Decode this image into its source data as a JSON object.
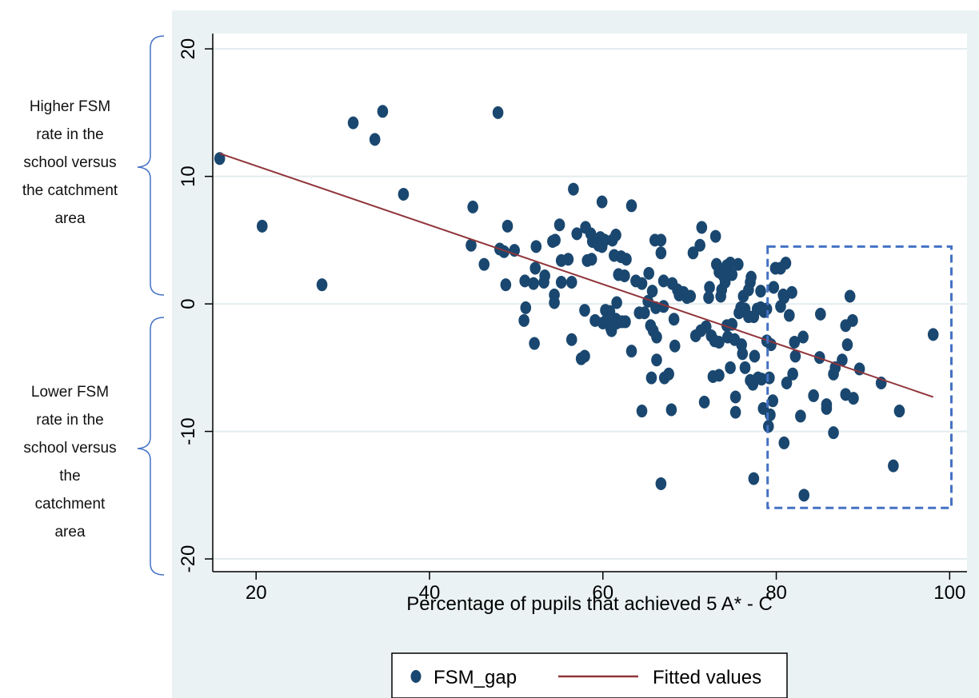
{
  "annotations": {
    "upper": "Higher FSM\nrate in the\nschool versus\nthe catchment\narea",
    "lower": "Lower FSM\nrate in the\nschool versus\nthe\ncatchment\narea"
  },
  "legend": {
    "scatter_label": "FSM_gap",
    "line_label": "Fitted values"
  },
  "colors": {
    "plot_background": "#eaf2f3",
    "marker": "#1a476f",
    "fit_line": "#90353b",
    "highlight_box": "#4472c4",
    "gridline": "#ffffff"
  },
  "chart_data": {
    "type": "scatter",
    "xlabel": "Percentage of pupils that achieved 5 A* - C",
    "ylabel": "",
    "xlim": [
      15,
      102
    ],
    "ylim": [
      -21,
      21.2
    ],
    "xticks": [
      20,
      40,
      60,
      80,
      100
    ],
    "yticks": [
      -20,
      -10,
      0,
      10,
      20
    ],
    "grid": true,
    "legend_position": "bottom",
    "series": [
      {
        "name": "FSM_gap",
        "type": "scatter",
        "points": [
          [
            15.8,
            11.4
          ],
          [
            20.7,
            6.1
          ],
          [
            27.6,
            1.5
          ],
          [
            31.2,
            14.2
          ],
          [
            33.7,
            12.9
          ],
          [
            34.6,
            15.1
          ],
          [
            37.0,
            8.6
          ],
          [
            47.9,
            15.0
          ],
          [
            45.0,
            7.6
          ],
          [
            44.8,
            4.6
          ],
          [
            46.3,
            3.1
          ],
          [
            48.1,
            4.3
          ],
          [
            48.6,
            4.1
          ],
          [
            49.0,
            6.1
          ],
          [
            49.8,
            4.2
          ],
          [
            48.8,
            1.5
          ],
          [
            51.0,
            1.8
          ],
          [
            51.1,
            -0.3
          ],
          [
            50.9,
            -1.3
          ],
          [
            52.0,
            1.6
          ],
          [
            52.2,
            2.8
          ],
          [
            52.3,
            4.5
          ],
          [
            52.1,
            -3.1
          ],
          [
            53.2,
            1.7
          ],
          [
            53.3,
            2.2
          ],
          [
            54.2,
            4.9
          ],
          [
            54.5,
            5.0
          ],
          [
            54.4,
            0.1
          ],
          [
            54.4,
            0.7
          ],
          [
            55.0,
            6.2
          ],
          [
            55.2,
            3.4
          ],
          [
            55.2,
            1.7
          ],
          [
            56.0,
            3.5
          ],
          [
            56.4,
            1.7
          ],
          [
            56.4,
            -2.8
          ],
          [
            56.6,
            9.0
          ],
          [
            57.0,
            5.5
          ],
          [
            57.5,
            -4.3
          ],
          [
            57.9,
            -4.1
          ],
          [
            57.9,
            -0.5
          ],
          [
            58.0,
            6.0
          ],
          [
            58.2,
            3.4
          ],
          [
            58.6,
            5.5
          ],
          [
            58.7,
            3.5
          ],
          [
            58.8,
            4.9
          ],
          [
            59.1,
            -1.3
          ],
          [
            59.3,
            5.0
          ],
          [
            59.5,
            4.6
          ],
          [
            59.7,
            5.2
          ],
          [
            59.9,
            8.0
          ],
          [
            59.9,
            4.5
          ],
          [
            60.0,
            -1.5
          ],
          [
            60.2,
            5.0
          ],
          [
            60.3,
            -0.5
          ],
          [
            60.5,
            -1.2
          ],
          [
            60.8,
            -0.6
          ],
          [
            60.9,
            -1.9
          ],
          [
            61.0,
            -2.1
          ],
          [
            61.1,
            5.0
          ],
          [
            61.3,
            3.8
          ],
          [
            61.5,
            5.4
          ],
          [
            61.5,
            -1.2
          ],
          [
            61.6,
            -1.5
          ],
          [
            61.6,
            0.1
          ],
          [
            61.8,
            2.3
          ],
          [
            62.1,
            3.7
          ],
          [
            62.2,
            -1.4
          ],
          [
            62.5,
            2.2
          ],
          [
            62.6,
            -1.4
          ],
          [
            62.7,
            3.5
          ],
          [
            63.3,
            7.7
          ],
          [
            63.3,
            -3.7
          ],
          [
            63.8,
            1.8
          ],
          [
            64.2,
            -0.7
          ],
          [
            64.5,
            1.6
          ],
          [
            64.5,
            -8.4
          ],
          [
            64.8,
            -0.7
          ],
          [
            65.2,
            0.2
          ],
          [
            65.3,
            2.4
          ],
          [
            65.5,
            -1.7
          ],
          [
            65.6,
            -5.8
          ],
          [
            65.7,
            1.0
          ],
          [
            65.8,
            -2.1
          ],
          [
            66.0,
            5.0
          ],
          [
            66.1,
            -0.3
          ],
          [
            66.2,
            -2.6
          ],
          [
            66.2,
            -4.4
          ],
          [
            66.7,
            5.0
          ],
          [
            66.7,
            4.0
          ],
          [
            66.7,
            -14.1
          ],
          [
            67.0,
            1.8
          ],
          [
            67.0,
            -0.2
          ],
          [
            67.1,
            -5.8
          ],
          [
            67.6,
            -5.5
          ],
          [
            67.9,
            -8.3
          ],
          [
            68.0,
            1.6
          ],
          [
            68.2,
            -1.2
          ],
          [
            68.3,
            -3.3
          ],
          [
            68.6,
            1.1
          ],
          [
            68.8,
            0.7
          ],
          [
            69.3,
            0.9
          ],
          [
            69.7,
            0.5
          ],
          [
            70.1,
            0.6
          ],
          [
            70.4,
            4.0
          ],
          [
            70.7,
            -2.5
          ],
          [
            71.2,
            4.6
          ],
          [
            71.3,
            -2.1
          ],
          [
            71.4,
            6.0
          ],
          [
            71.7,
            -7.7
          ],
          [
            71.9,
            -1.8
          ],
          [
            72.2,
            0.5
          ],
          [
            72.3,
            1.3
          ],
          [
            72.5,
            -2.5
          ],
          [
            72.7,
            -5.7
          ],
          [
            72.9,
            -2.9
          ],
          [
            73.0,
            5.3
          ],
          [
            73.1,
            3.1
          ],
          [
            73.4,
            -3.0
          ],
          [
            73.4,
            2.5
          ],
          [
            73.4,
            -5.6
          ],
          [
            73.6,
            0.6
          ],
          [
            73.7,
            1.1
          ],
          [
            73.9,
            2.2
          ],
          [
            74.1,
            1.7
          ],
          [
            74.3,
            3.0
          ],
          [
            74.3,
            -1.7
          ],
          [
            74.4,
            -2.6
          ],
          [
            74.7,
            -5.0
          ],
          [
            74.7,
            3.2
          ],
          [
            74.9,
            -1.6
          ],
          [
            74.9,
            2.3
          ],
          [
            75.2,
            -2.8
          ],
          [
            75.3,
            -8.5
          ],
          [
            75.3,
            -7.3
          ],
          [
            75.6,
            3.1
          ],
          [
            75.7,
            -0.7
          ],
          [
            75.9,
            -0.3
          ],
          [
            76.0,
            -3.2
          ],
          [
            76.1,
            -3.9
          ],
          [
            76.2,
            0.6
          ],
          [
            76.4,
            -5.0
          ],
          [
            76.4,
            -0.4
          ],
          [
            76.8,
            -1.0
          ],
          [
            76.8,
            1.1
          ],
          [
            77.0,
            1.7
          ],
          [
            77.0,
            -6.0
          ],
          [
            77.1,
            2.1
          ],
          [
            77.3,
            -6.3
          ],
          [
            77.4,
            -13.7
          ],
          [
            77.4,
            -1.0
          ],
          [
            77.5,
            -4.1
          ],
          [
            77.8,
            -0.4
          ],
          [
            77.9,
            -5.8
          ],
          [
            78.2,
            1.0
          ],
          [
            78.2,
            -0.3
          ],
          [
            78.3,
            -5.9
          ],
          [
            78.5,
            -8.2
          ],
          [
            78.6,
            -0.6
          ],
          [
            78.9,
            -2.9
          ],
          [
            78.9,
            -0.4
          ],
          [
            79.1,
            -9.6
          ],
          [
            79.2,
            -5.8
          ],
          [
            79.3,
            -8.7
          ],
          [
            79.4,
            -3.2
          ],
          [
            79.6,
            -7.6
          ],
          [
            79.7,
            1.3
          ],
          [
            79.9,
            2.8
          ],
          [
            80.5,
            -0.2
          ],
          [
            80.5,
            2.8
          ],
          [
            80.8,
            0.7
          ],
          [
            80.9,
            -10.9
          ],
          [
            80.9,
            0.5
          ],
          [
            81.1,
            3.2
          ],
          [
            81.2,
            -6.2
          ],
          [
            81.5,
            -0.9
          ],
          [
            81.8,
            0.9
          ],
          [
            81.9,
            -5.5
          ],
          [
            82.1,
            -3.0
          ],
          [
            82.2,
            -4.1
          ],
          [
            82.8,
            -8.8
          ],
          [
            83.1,
            -2.6
          ],
          [
            83.2,
            -15.0
          ],
          [
            84.3,
            -7.2
          ],
          [
            85.0,
            -4.2
          ],
          [
            85.1,
            -0.8
          ],
          [
            85.8,
            -8.2
          ],
          [
            85.8,
            -7.9
          ],
          [
            86.6,
            -5.5
          ],
          [
            86.6,
            -10.1
          ],
          [
            86.8,
            -5.0
          ],
          [
            87.6,
            -4.4
          ],
          [
            88.0,
            -1.7
          ],
          [
            88.0,
            -7.1
          ],
          [
            88.2,
            -3.2
          ],
          [
            88.5,
            0.6
          ],
          [
            88.8,
            -1.3
          ],
          [
            88.9,
            -7.4
          ],
          [
            89.6,
            -5.1
          ],
          [
            92.1,
            -6.2
          ],
          [
            93.5,
            -12.7
          ],
          [
            94.2,
            -8.4
          ],
          [
            98.1,
            -2.4
          ]
        ]
      },
      {
        "name": "Fitted values",
        "type": "line",
        "points": [
          [
            15.8,
            11.8
          ],
          [
            98.1,
            -7.3
          ]
        ]
      }
    ],
    "highlight_region": {
      "x": [
        79,
        100.2
      ],
      "y": [
        -16,
        4.5
      ]
    }
  }
}
